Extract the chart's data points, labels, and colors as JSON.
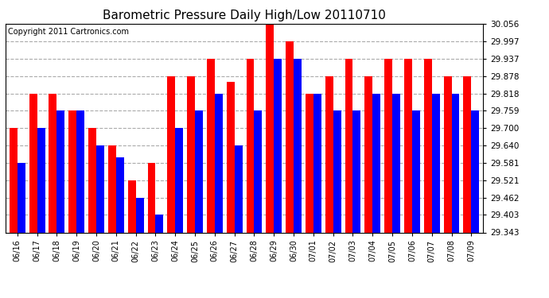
{
  "title": "Barometric Pressure Daily High/Low 20110710",
  "copyright": "Copyright 2011 Cartronics.com",
  "dates": [
    "06/16",
    "06/17",
    "06/18",
    "06/19",
    "06/20",
    "06/21",
    "06/22",
    "06/23",
    "06/24",
    "06/25",
    "06/26",
    "06/27",
    "06/28",
    "06/29",
    "06/30",
    "07/01",
    "07/02",
    "07/03",
    "07/04",
    "07/05",
    "07/06",
    "07/07",
    "07/08",
    "07/09"
  ],
  "highs": [
    29.7,
    29.818,
    29.818,
    29.759,
    29.7,
    29.64,
    29.521,
    29.581,
    29.878,
    29.878,
    29.937,
    29.859,
    29.937,
    30.056,
    29.997,
    29.818,
    29.878,
    29.937,
    29.878,
    29.937,
    29.937,
    29.937,
    29.878,
    29.878
  ],
  "lows": [
    29.581,
    29.7,
    29.759,
    29.759,
    29.64,
    29.6,
    29.462,
    29.403,
    29.7,
    29.759,
    29.818,
    29.64,
    29.759,
    29.937,
    29.937,
    29.818,
    29.759,
    29.759,
    29.818,
    29.818,
    29.759,
    29.818,
    29.818,
    29.759
  ],
  "ymin": 29.343,
  "ymax": 30.056,
  "yticks": [
    29.343,
    29.403,
    29.462,
    29.521,
    29.581,
    29.64,
    29.7,
    29.759,
    29.818,
    29.878,
    29.937,
    29.997,
    30.056
  ],
  "bar_color_high": "#FF0000",
  "bar_color_low": "#0000FF",
  "bg_color": "#FFFFFF",
  "grid_color": "#AAAAAA",
  "title_fontsize": 11,
  "copyright_fontsize": 7,
  "bar_width": 0.4
}
